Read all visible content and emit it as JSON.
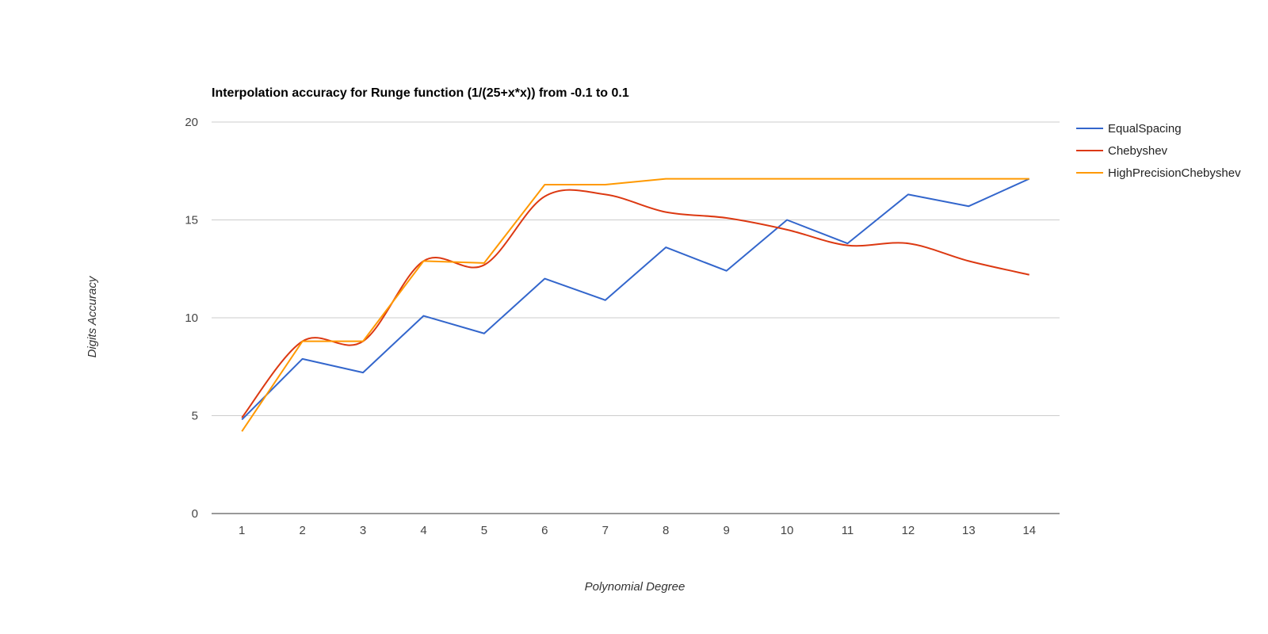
{
  "chart_data": {
    "type": "line",
    "title": "Interpolation accuracy for Runge function (1/(25+x*x)) from -0.1 to 0.1",
    "xlabel": "Polynomial Degree",
    "ylabel": "Digits Accuracy",
    "categories": [
      "1",
      "2",
      "3",
      "4",
      "5",
      "6",
      "7",
      "8",
      "9",
      "10",
      "11",
      "12",
      "13",
      "14"
    ],
    "ylim": [
      0,
      20
    ],
    "yticks": [
      "0",
      "5",
      "10",
      "15",
      "20"
    ],
    "grid": true,
    "legend_position": "right",
    "series": [
      {
        "name": "EqualSpacing",
        "color": "#3366cc",
        "smooth": false,
        "values": [
          4.8,
          7.9,
          7.2,
          10.1,
          9.2,
          12.0,
          10.9,
          13.6,
          12.4,
          15.0,
          13.8,
          16.3,
          15.7,
          17.1
        ]
      },
      {
        "name": "Chebyshev",
        "color": "#dc3912",
        "smooth": true,
        "values": [
          4.9,
          8.8,
          8.8,
          12.9,
          12.7,
          16.2,
          16.3,
          15.4,
          15.1,
          14.5,
          13.7,
          13.8,
          12.9,
          12.2
        ]
      },
      {
        "name": "HighPrecisionChebyshev",
        "color": "#ff9900",
        "smooth": false,
        "values": [
          4.2,
          8.8,
          8.8,
          12.9,
          12.8,
          16.8,
          16.8,
          17.1,
          17.1,
          17.1,
          17.1,
          17.1,
          17.1,
          17.1
        ]
      }
    ]
  }
}
